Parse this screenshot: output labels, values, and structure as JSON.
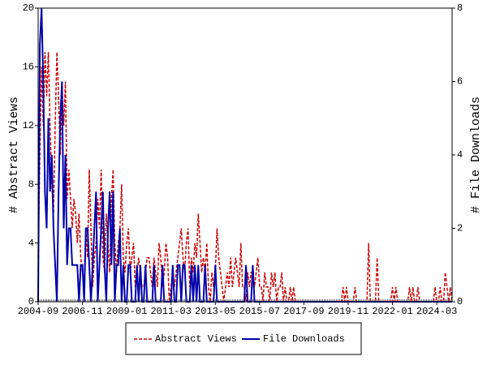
{
  "chart_data": {
    "type": "line",
    "y_label": "# Abstract Views",
    "y2_label": "# File Downloads",
    "x": [
      "2004-09",
      "2004-10",
      "2004-11",
      "2004-12",
      "2005-01",
      "2005-02",
      "2005-03",
      "2005-04",
      "2005-05",
      "2005-06",
      "2005-07",
      "2005-08",
      "2005-09",
      "2005-10",
      "2005-11",
      "2005-12",
      "2006-01",
      "2006-02",
      "2006-03",
      "2006-04",
      "2006-05",
      "2006-06",
      "2006-07",
      "2006-08",
      "2006-09",
      "2006-10",
      "2006-11",
      "2006-12",
      "2007-01",
      "2007-02",
      "2007-03",
      "2007-04",
      "2007-05",
      "2007-06",
      "2007-07",
      "2007-08",
      "2007-09",
      "2007-10",
      "2007-11",
      "2007-12",
      "2008-01",
      "2008-02",
      "2008-03",
      "2008-04",
      "2008-05",
      "2008-06",
      "2008-07",
      "2008-08",
      "2008-09",
      "2008-10",
      "2008-11",
      "2008-12",
      "2009-01",
      "2009-02",
      "2009-03",
      "2009-04",
      "2009-05",
      "2009-06",
      "2009-07",
      "2009-08",
      "2009-09",
      "2009-10",
      "2009-11",
      "2009-12",
      "2010-01",
      "2010-02",
      "2010-03",
      "2010-04",
      "2010-05",
      "2010-06",
      "2010-07",
      "2010-08",
      "2010-09",
      "2010-10",
      "2010-11",
      "2010-12",
      "2011-01",
      "2011-02",
      "2011-03",
      "2011-04",
      "2011-05",
      "2011-06",
      "2011-07",
      "2011-08",
      "2011-09",
      "2011-10",
      "2011-11",
      "2011-12",
      "2012-01",
      "2012-02",
      "2012-03",
      "2012-04",
      "2012-05",
      "2012-06",
      "2012-07",
      "2012-08",
      "2012-09",
      "2012-10",
      "2012-11",
      "2012-12",
      "2013-01",
      "2013-02",
      "2013-03",
      "2013-04",
      "2013-05",
      "2013-06",
      "2013-07",
      "2013-08",
      "2013-09",
      "2013-10",
      "2013-11",
      "2013-12",
      "2014-01",
      "2014-02",
      "2014-03",
      "2014-04",
      "2014-05",
      "2014-06",
      "2014-07",
      "2014-08",
      "2014-09",
      "2014-10",
      "2014-11",
      "2014-12",
      "2015-01",
      "2015-02",
      "2015-03",
      "2015-04",
      "2015-05",
      "2015-06",
      "2015-07",
      "2015-08",
      "2015-09",
      "2015-10",
      "2015-11",
      "2015-12",
      "2016-01",
      "2016-02",
      "2016-03",
      "2016-04",
      "2016-05",
      "2016-06",
      "2016-07",
      "2016-08",
      "2016-09",
      "2016-10",
      "2016-11",
      "2016-12",
      "2017-01",
      "2017-02",
      "2017-03",
      "2017-04",
      "2017-05",
      "2017-06",
      "2017-07",
      "2017-08",
      "2017-09",
      "2017-10",
      "2017-11",
      "2017-12",
      "2018-01",
      "2018-02",
      "2018-03",
      "2018-04",
      "2018-05",
      "2018-06",
      "2018-07",
      "2018-08",
      "2018-09",
      "2018-10",
      "2018-11",
      "2018-12",
      "2019-01",
      "2019-02",
      "2019-03",
      "2019-04",
      "2019-05",
      "2019-06",
      "2019-07",
      "2019-08",
      "2019-09",
      "2019-10",
      "2019-11",
      "2019-12",
      "2020-01",
      "2020-02",
      "2020-03",
      "2020-04",
      "2020-05",
      "2020-06",
      "2020-07",
      "2020-08",
      "2020-09",
      "2020-10",
      "2020-11",
      "2020-12",
      "2021-01",
      "2021-02",
      "2021-03",
      "2021-04",
      "2021-05",
      "2021-06",
      "2021-07",
      "2021-08",
      "2021-09",
      "2021-10",
      "2021-11",
      "2021-12",
      "2022-01",
      "2022-02",
      "2022-03",
      "2022-04",
      "2022-05",
      "2022-06",
      "2022-07",
      "2022-08",
      "2022-09",
      "2022-10",
      "2022-11",
      "2022-12",
      "2023-01",
      "2023-02",
      "2023-03",
      "2023-04",
      "2023-05",
      "2023-06",
      "2023-07",
      "2023-08",
      "2023-09",
      "2023-10",
      "2023-11",
      "2023-12",
      "2024-01",
      "2024-02",
      "2024-03",
      "2024-04",
      "2024-05",
      "2024-06",
      "2024-07",
      "2024-08",
      "2024-09",
      "2024-10",
      "2024-11",
      "2024-12"
    ],
    "xticks": [
      "2004-09",
      "2006-11",
      "2009-01",
      "2011-03",
      "2013-05",
      "2015-07",
      "2017-09",
      "2019-11",
      "2022-01",
      "2024-03"
    ],
    "ylim": [
      0,
      20
    ],
    "yticks": [
      0,
      4,
      8,
      12,
      16,
      20
    ],
    "y2lim": [
      0,
      8
    ],
    "y2ticks": [
      0,
      2,
      4,
      6,
      8
    ],
    "series": [
      {
        "name": "Abstract Views",
        "color": "#cc0000",
        "dash": true,
        "values": [
          3,
          10,
          16,
          12,
          17,
          14,
          17,
          12,
          8,
          6,
          12,
          17,
          14,
          10,
          15,
          12,
          15,
          7,
          9,
          7,
          5,
          7,
          6,
          4,
          6,
          3,
          2,
          1,
          5,
          3,
          9,
          5,
          1,
          3,
          4,
          7,
          5,
          9,
          3,
          2,
          6,
          4,
          2,
          7,
          9,
          4,
          2,
          4,
          5,
          8,
          3,
          2,
          4,
          5,
          2,
          3,
          4,
          1,
          2,
          3,
          2,
          1,
          1,
          2,
          3,
          3,
          2,
          1,
          3,
          2,
          1,
          4,
          3,
          1,
          2,
          4,
          3,
          0,
          1,
          2,
          1,
          2,
          3,
          4,
          5,
          3,
          2,
          4,
          5,
          1,
          3,
          2,
          4,
          3,
          6,
          4,
          2,
          3,
          2,
          4,
          1,
          0,
          2,
          1,
          2,
          5,
          3,
          2,
          1,
          0,
          1,
          2,
          1,
          3,
          1,
          2,
          3,
          2,
          1,
          4,
          1,
          1,
          0,
          2,
          1,
          2,
          2,
          1,
          2,
          3,
          1,
          1,
          0,
          2,
          1,
          1,
          0,
          2,
          1,
          2,
          0,
          1,
          1,
          2,
          0,
          1,
          0,
          0,
          1,
          0,
          1,
          0,
          0,
          0,
          0,
          0,
          0,
          0,
          0,
          0,
          0,
          0,
          0,
          0,
          0,
          0,
          0,
          0,
          0,
          0,
          0,
          0,
          0,
          0,
          0,
          0,
          0,
          0,
          0,
          1,
          0,
          1,
          0,
          0,
          0,
          0,
          1,
          0,
          0,
          0,
          0,
          0,
          0,
          0,
          4,
          0,
          0,
          0,
          0,
          3,
          0,
          0,
          0,
          0,
          0,
          0,
          0,
          0,
          1,
          0,
          1,
          0,
          0,
          0,
          0,
          0,
          0,
          0,
          1,
          0,
          1,
          0,
          0,
          1,
          0,
          0,
          0,
          0,
          0,
          0,
          0,
          0,
          0,
          1,
          0,
          0,
          1,
          0,
          0,
          2,
          1,
          0,
          1,
          0
        ]
      },
      {
        "name": "File Downloads",
        "color": "#0000aa",
        "axis": "y2",
        "values": [
          0,
          7,
          8,
          6,
          3,
          2,
          5,
          3,
          4,
          2,
          1,
          0,
          3,
          5,
          6,
          2,
          4,
          1,
          2,
          2,
          1,
          1,
          1,
          1,
          0,
          1,
          1,
          0,
          2,
          2,
          1,
          0,
          1,
          2,
          3,
          0,
          1,
          2,
          3,
          1,
          0,
          2,
          3,
          1,
          3,
          0,
          1,
          1,
          2,
          0,
          1,
          0,
          0,
          1,
          1,
          0,
          0,
          0,
          1,
          0,
          1,
          0,
          0,
          1,
          0,
          0,
          0,
          0,
          1,
          0,
          0,
          0,
          0,
          1,
          0,
          0,
          0,
          0,
          0,
          1,
          0,
          0,
          1,
          1,
          0,
          1,
          1,
          0,
          0,
          0,
          1,
          0,
          1,
          0,
          1,
          0,
          0,
          0,
          1,
          0,
          0,
          0,
          0,
          0,
          1,
          0,
          0,
          0,
          0,
          0,
          0,
          0,
          0,
          0,
          0,
          0,
          0,
          0,
          0,
          0,
          0,
          0,
          1,
          0,
          0,
          0,
          1,
          0,
          0,
          0,
          0,
          0,
          0,
          0,
          0,
          0,
          0,
          0,
          0,
          0,
          0,
          0,
          0,
          0,
          0,
          0,
          0,
          0,
          0,
          0,
          0,
          0,
          0,
          0,
          0,
          0,
          0,
          0,
          0,
          0,
          0,
          0,
          0,
          0,
          0,
          0,
          0,
          0,
          0,
          0,
          0,
          0,
          0,
          0,
          0,
          0,
          0,
          0,
          0,
          0,
          0,
          0,
          0,
          0,
          0,
          0,
          0,
          0,
          0,
          0,
          0,
          0,
          0,
          0,
          0,
          0,
          0,
          0,
          0,
          0,
          0,
          0,
          0,
          0,
          0,
          0,
          0,
          0,
          0,
          0,
          0,
          0,
          0,
          0,
          0,
          0,
          0,
          0,
          0,
          0,
          0,
          0,
          0,
          0,
          0,
          0,
          0,
          0,
          0,
          0,
          0,
          0,
          0,
          0,
          0,
          0,
          0,
          0,
          0,
          0,
          0,
          0,
          0,
          0
        ]
      }
    ]
  }
}
